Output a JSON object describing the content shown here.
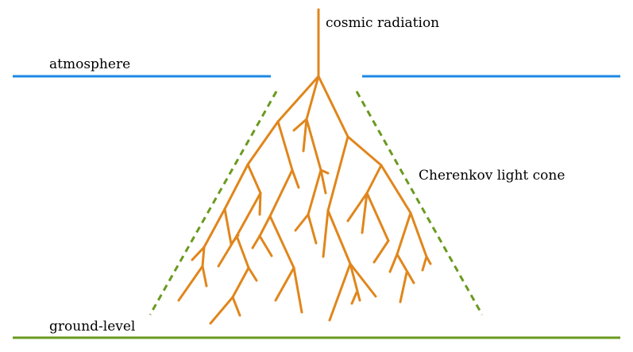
{
  "labels": {
    "cosmic": "cosmic radiation",
    "atmosphere": "atmosphere",
    "cone": "Cherenkov light cone",
    "ground": "ground-level"
  },
  "colors": {
    "atmosphere": "#1e88e5",
    "cone": "#6a9a1f",
    "ground": "#6a9a1f",
    "shower": "#e0861c",
    "text": "#000000"
  }
}
